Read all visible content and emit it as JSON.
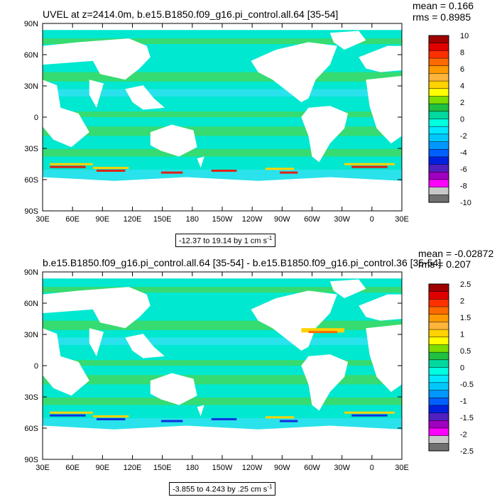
{
  "panels": [
    {
      "title": "UVEL at z=2414.0m, b.e15.B1850.f09_g16.pi_control.all.64 [35-54]",
      "mean": "mean = 0.166",
      "rms": "rms = 0.8985",
      "range_text": "-12.37 to 19.14 by 1 cm s",
      "range_exp": "-1",
      "colorbar_labels": [
        "10",
        "8",
        "6",
        "4",
        "2",
        "0",
        "-2",
        "-4",
        "-6",
        "-8",
        "-10"
      ],
      "south_anomaly": "#e02010"
    },
    {
      "title": "b.e15.B1850.f09_g16.pi_control.all.64 [35-54] - b.e15.B1850.f09_g16.pi_control.36 [35-54]",
      "mean": "mean = -0.02872",
      "rms": "rms = 0.207",
      "range_text": "-3.855 to 4.243 by .25 cm s",
      "range_exp": "-1",
      "colorbar_labels": [
        "2.5",
        "2",
        "1.5",
        "1",
        "0.5",
        "0",
        "-0.5",
        "-1",
        "-1.5",
        "-2",
        "-2.5"
      ],
      "south_anomaly": "#1030e0"
    }
  ],
  "x_ticks": [
    "30E",
    "60E",
    "90E",
    "120E",
    "150E",
    "180",
    "150W",
    "120W",
    "90W",
    "60W",
    "30W",
    "0",
    "30E"
  ],
  "y_ticks": [
    "90N",
    "60N",
    "30N",
    "0",
    "30S",
    "60S",
    "90S"
  ],
  "colorbar_colors": [
    "#a00000",
    "#e00000",
    "#ff3000",
    "#ff6a00",
    "#ff9a00",
    "#ffb43c",
    "#ffd200",
    "#ffff00",
    "#7cdd00",
    "#20c040",
    "#00d8a0",
    "#00ffe0",
    "#00e8ff",
    "#00c8ff",
    "#0098ff",
    "#0060ff",
    "#0020e0",
    "#5020c0",
    "#a000c0",
    "#ff00ff",
    "#c8c8c8",
    "#707070"
  ],
  "colors": {
    "ocean_base": "#00e8d0",
    "ocean_band": "#40d860",
    "ocean_cool": "#30e0f0",
    "land": "#ffffff"
  }
}
